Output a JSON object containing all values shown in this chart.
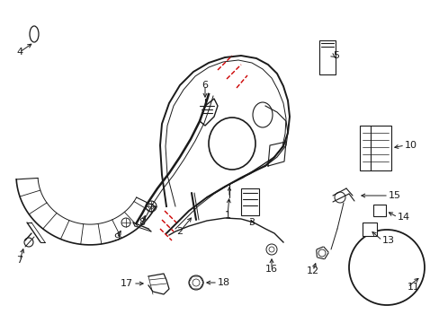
{
  "background_color": "#ffffff",
  "line_color": "#1a1a1a",
  "red_color": "#cc0000",
  "figsize": [
    4.89,
    3.6
  ],
  "dpi": 100
}
